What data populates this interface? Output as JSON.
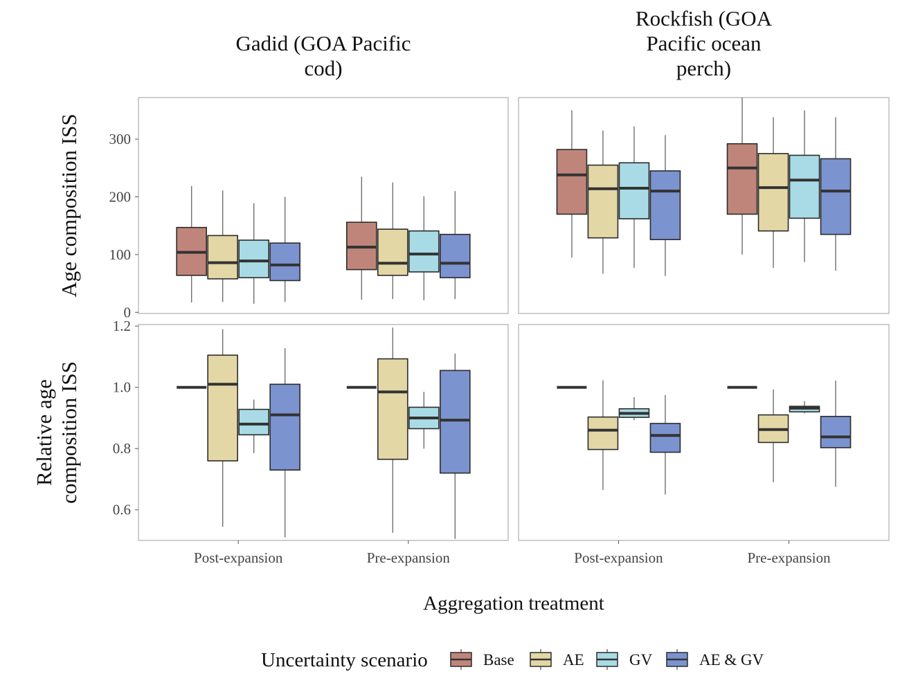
{
  "chart_data": {
    "type": "boxplot",
    "columns": [
      "Gadid (GOA Pacific cod)",
      "Rockfish (GOA Pacific ocean perch)"
    ],
    "column_title_lines": [
      [
        "Gadid (GOA Pacific",
        "cod)"
      ],
      [
        "Rockfish (GOA",
        "Pacific ocean",
        "perch)"
      ]
    ],
    "rows": [
      "Age composition ISS",
      "Relative age composition ISS"
    ],
    "row_label_lines": [
      [
        "Age composition ISS"
      ],
      [
        "Relative age",
        "composition ISS"
      ]
    ],
    "categories": [
      "Post-expansion",
      "Pre-expansion"
    ],
    "xlabel": "Aggregation treatment",
    "legend_title": "Uncertainty scenario",
    "series": [
      {
        "name": "Base",
        "color": "#c0857a"
      },
      {
        "name": "AE",
        "color": "#e3d7a5"
      },
      {
        "name": "GV",
        "color": "#a8dbe5"
      },
      {
        "name": "AE & GV",
        "color": "#7b93cf"
      }
    ],
    "rows_axis": [
      {
        "ylim": [
          -2,
          372
        ],
        "ticks": [
          "0",
          "100",
          "200",
          "300"
        ],
        "tick_values": [
          0,
          100,
          200,
          300
        ]
      },
      {
        "ylim": [
          0.5,
          1.205
        ],
        "ticks": [
          "0.6",
          "0.8",
          "1.0",
          "1.2"
        ],
        "tick_values": [
          0.6,
          0.8,
          1.0,
          1.2
        ]
      }
    ],
    "panels": [
      {
        "row": 0,
        "col": 0,
        "groups": [
          [
            [
              17,
              64,
              104,
              147,
              219
            ],
            [
              18,
              58,
              86,
              133,
              211
            ],
            [
              15,
              60,
              89,
              125,
              189
            ],
            [
              18,
              55,
              82,
              120,
              200
            ]
          ],
          [
            [
              22,
              74,
              113,
              156,
              235
            ],
            [
              23,
              64,
              85,
              144,
              225
            ],
            [
              21,
              70,
              101,
              141,
              201
            ],
            [
              23,
              60,
              85,
              135,
              210
            ]
          ]
        ]
      },
      {
        "row": 0,
        "col": 1,
        "groups": [
          [
            [
              95,
              170,
              238,
              282,
              350
            ],
            [
              67,
              129,
              214,
              255,
              315
            ],
            [
              77,
              162,
              215,
              259,
              322
            ],
            [
              63,
              126,
              210,
              245,
              307
            ]
          ],
          [
            [
              100,
              170,
              250,
              292,
              372
            ],
            [
              77,
              141,
              216,
              275,
              338
            ],
            [
              87,
              163,
              229,
              272,
              350
            ],
            [
              72,
              135,
              210,
              266,
              338
            ]
          ]
        ]
      },
      {
        "row": 1,
        "col": 0,
        "groups": [
          [
            [
              1.0,
              1.0,
              1.0,
              1.0,
              1.0
            ],
            [
              0.545,
              0.76,
              1.01,
              1.105,
              1.19
            ],
            [
              0.785,
              0.845,
              0.88,
              0.928,
              0.96
            ],
            [
              0.51,
              0.73,
              0.91,
              1.01,
              1.128
            ]
          ],
          [
            [
              1.0,
              1.0,
              1.0,
              1.0,
              1.0
            ],
            [
              0.525,
              0.765,
              0.985,
              1.093,
              1.195
            ],
            [
              0.8,
              0.865,
              0.9,
              0.935,
              0.985
            ],
            [
              0.505,
              0.72,
              0.893,
              1.055,
              1.11
            ]
          ]
        ]
      },
      {
        "row": 1,
        "col": 1,
        "groups": [
          [
            [
              1.0,
              1.0,
              1.0,
              1.0,
              1.0
            ],
            [
              0.665,
              0.797,
              0.86,
              0.903,
              1.023
            ],
            [
              0.893,
              0.902,
              0.915,
              0.93,
              0.968
            ],
            [
              0.65,
              0.788,
              0.843,
              0.882,
              0.975
            ]
          ],
          [
            [
              1.0,
              1.0,
              1.0,
              1.0,
              1.0
            ],
            [
              0.69,
              0.82,
              0.862,
              0.91,
              0.993
            ],
            [
              0.915,
              0.92,
              0.932,
              0.938,
              0.955
            ],
            [
              0.675,
              0.803,
              0.838,
              0.905,
              1.022
            ]
          ]
        ]
      }
    ]
  }
}
